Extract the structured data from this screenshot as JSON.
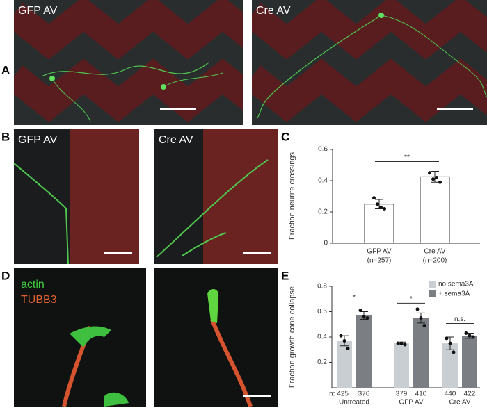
{
  "figure": {
    "panel_labels": [
      "A",
      "B",
      "C",
      "D",
      "E"
    ],
    "image_labels": [
      "GFP AV",
      "Cre AV",
      "GFP AV",
      "Cre AV"
    ],
    "stain_labels": [
      "actin",
      "TUBB3"
    ]
  },
  "chart_data": [
    {
      "type": "bar",
      "ylabel": "Fraction neurite crossings",
      "categories": [
        "GFP AV",
        "Cre AV"
      ],
      "sample_sizes": [
        "(n=257)",
        "(n=200)"
      ],
      "series": [
        {
          "color": "#ffffff",
          "values": [
            0.25,
            0.425
          ],
          "errors": [
            0.03,
            0.035
          ],
          "points": [
            [
              0.29,
              0.25,
              0.23,
              0.22
            ],
            [
              0.45,
              0.41,
              0.42,
              0.39
            ]
          ]
        }
      ],
      "significance": [
        "**"
      ],
      "ylim": [
        0,
        0.6
      ],
      "yticks": [
        0.0,
        0.2,
        0.4,
        0.6
      ]
    },
    {
      "type": "bar",
      "ylabel": "Fraction growth cone collapse",
      "categories": [
        "Untreated",
        "GFP AV",
        "Cre AV"
      ],
      "n_labels": [
        "n: 425",
        "376",
        "379",
        "410",
        "440",
        "422"
      ],
      "series": [
        {
          "name": "no sema3A",
          "color": "#c9ced3",
          "values": [
            0.37,
            0.35,
            0.35
          ],
          "errors": [
            0.04,
            0.01,
            0.05
          ],
          "points": [
            [
              0.41,
              0.37,
              0.31
            ],
            [
              0.35,
              0.35,
              0.34
            ],
            [
              0.39,
              0.35,
              0.28
            ]
          ]
        },
        {
          "name": "+ sema3A",
          "color": "#7b7f83",
          "values": [
            0.57,
            0.55,
            0.41
          ],
          "errors": [
            0.03,
            0.04,
            0.02
          ],
          "points": [
            [
              0.61,
              0.56,
              0.55
            ],
            [
              0.62,
              0.55,
              0.49
            ],
            [
              0.43,
              0.41,
              0.4
            ]
          ]
        }
      ],
      "significance": [
        "*",
        "*",
        "n.s."
      ],
      "ylim": [
        0,
        0.8
      ],
      "yticks": [
        0.2,
        0.4,
        0.6,
        0.8
      ]
    }
  ]
}
